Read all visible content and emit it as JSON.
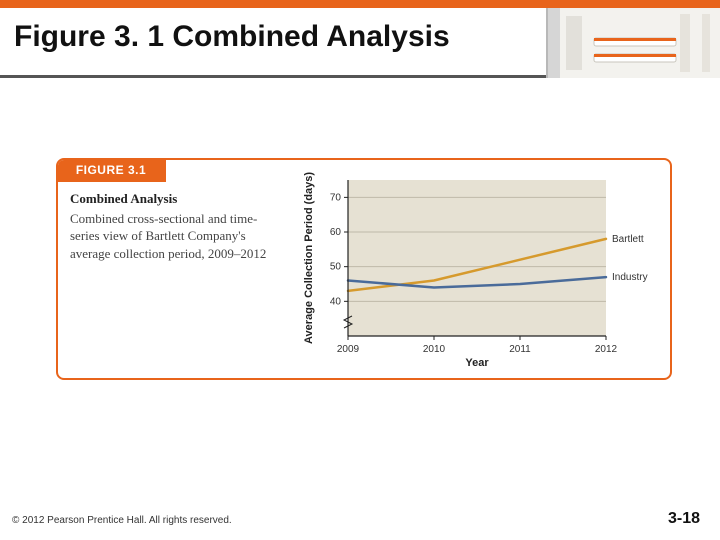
{
  "header": {
    "title": "Figure 3. 1 Combined Analysis",
    "accent_color": "#e8641b",
    "rule_color": "#555555"
  },
  "figure": {
    "tab_label": "FIGURE 3.1",
    "tab_bg": "#e8641b",
    "tab_fg": "#ffffff",
    "border_color": "#e8641b",
    "title": "Combined Analysis",
    "caption": "Combined cross-sectional and time-series view of Bartlett Company's average collection period, 2009–2012"
  },
  "chart": {
    "type": "line",
    "background_color": "#e6e1d3",
    "axis_color": "#222222",
    "grid_color": "#bfb9a9",
    "xlabel": "Year",
    "ylabel": "Average Collection Period (days)",
    "label_fontsize": 11,
    "tick_fontsize": 10,
    "xlim": [
      2009,
      2012
    ],
    "ylim": [
      30,
      75
    ],
    "xticks": [
      2009,
      2010,
      2011,
      2012
    ],
    "yticks": [
      40,
      50,
      60,
      70
    ],
    "axis_break_y": true,
    "line_width": 2.5,
    "series": [
      {
        "name": "Bartlett",
        "color": "#d69a2d",
        "x": [
          2009,
          2010,
          2011,
          2012
        ],
        "y": [
          43,
          46,
          52,
          58
        ],
        "label_at_end": "Bartlett"
      },
      {
        "name": "Industry",
        "color": "#4a6b9a",
        "x": [
          2009,
          2010,
          2011,
          2012
        ],
        "y": [
          46,
          44,
          45,
          47
        ],
        "label_at_end": "Industry"
      }
    ]
  },
  "footer": {
    "copyright": "© 2012 Pearson Prentice Hall. All rights reserved.",
    "page": "3-18"
  }
}
